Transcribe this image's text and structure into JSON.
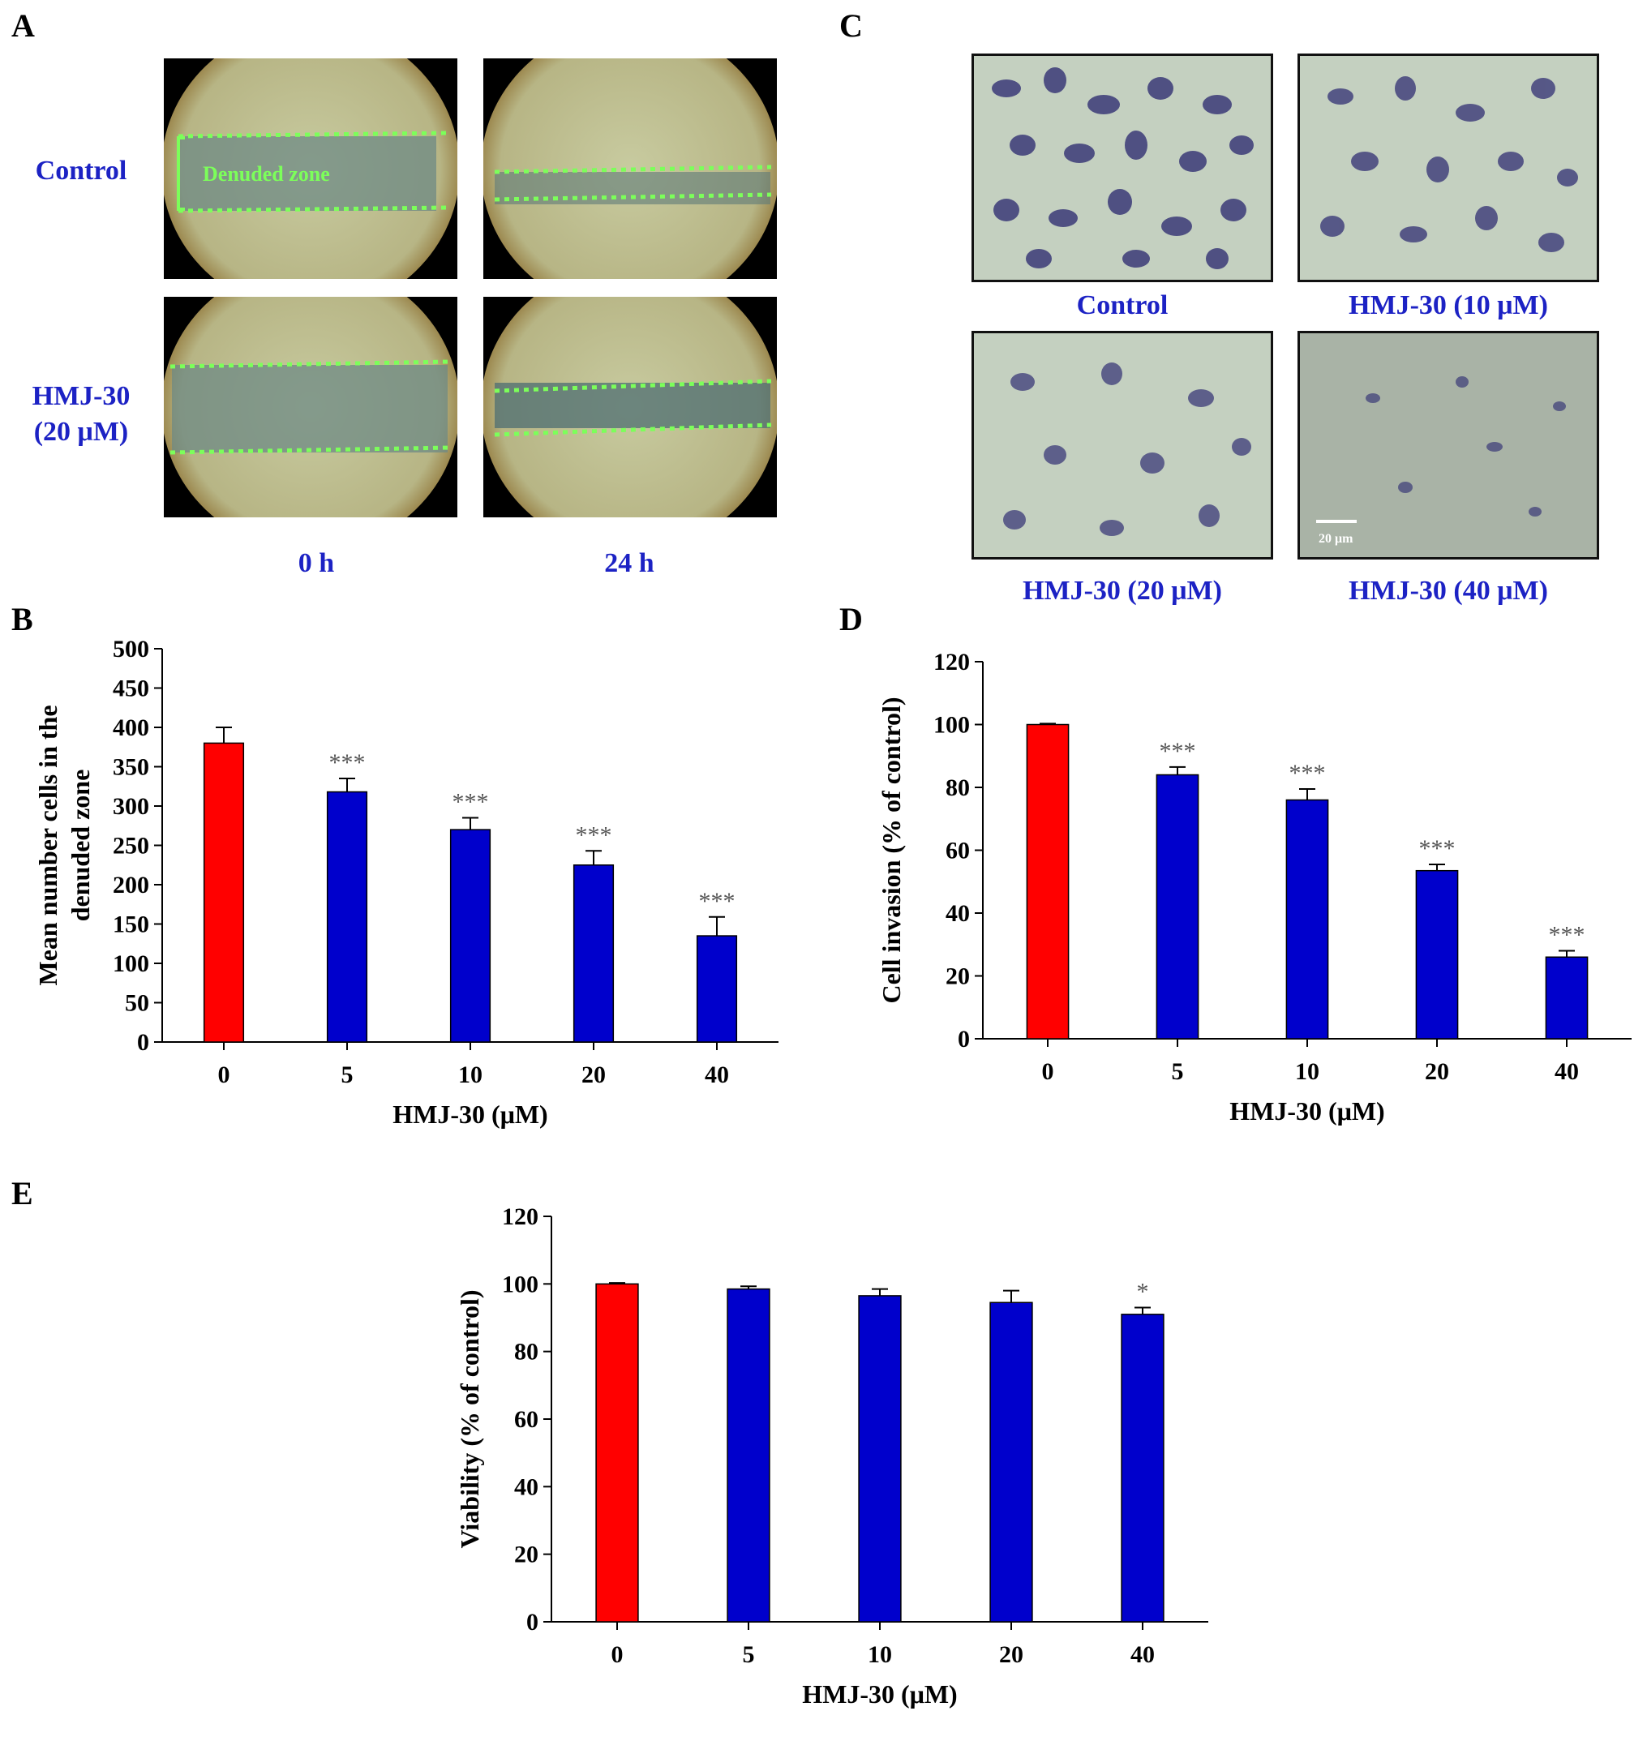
{
  "panels": {
    "A": {
      "letter": "A",
      "row_labels": [
        "Control",
        "HMJ-30",
        "(20 μM)"
      ],
      "col_labels": [
        "0 h",
        "24 h"
      ],
      "annotation": "Denuded zone"
    },
    "C": {
      "letter": "C",
      "image_labels": [
        "Control",
        "HMJ-30 (10 μM)",
        "HMJ-30 (20 μM)",
        "HMJ-30 (40 μM)"
      ],
      "scale_bar": "20 μm"
    },
    "B": {
      "letter": "B"
    },
    "D": {
      "letter": "D"
    },
    "E": {
      "letter": "E"
    }
  },
  "colors": {
    "control_bar": "#ff0000",
    "treated_bar": "#0000cc",
    "label_blue": "#1c22c4",
    "zone_line": "#7cff5a"
  },
  "chart_data": [
    {
      "id": "B",
      "type": "bar",
      "categories": [
        "0",
        "5",
        "10",
        "20",
        "40"
      ],
      "values": [
        380,
        318,
        270,
        225,
        135
      ],
      "errors": [
        20,
        17,
        15,
        18,
        24
      ],
      "significance": [
        "",
        "***",
        "***",
        "***",
        "***"
      ],
      "xlabel": "HMJ-30 (μM)",
      "ylabel": "Mean number cells in the denuded zone",
      "ylim": [
        0,
        500
      ],
      "yticks": [
        0,
        50,
        100,
        150,
        200,
        250,
        300,
        350,
        400,
        450,
        500
      ]
    },
    {
      "id": "D",
      "type": "bar",
      "categories": [
        "0",
        "5",
        "10",
        "20",
        "40"
      ],
      "values": [
        100,
        84,
        76,
        53.5,
        26
      ],
      "errors": [
        0.3,
        2.5,
        3.5,
        2,
        2
      ],
      "significance": [
        "",
        "***",
        "***",
        "***",
        "***"
      ],
      "xlabel": "HMJ-30 (μM)",
      "ylabel": "Cell invasion (% of control)",
      "ylim": [
        0,
        120
      ],
      "yticks": [
        0,
        20,
        40,
        60,
        80,
        100,
        120
      ]
    },
    {
      "id": "E",
      "type": "bar",
      "categories": [
        "0",
        "5",
        "10",
        "20",
        "40"
      ],
      "values": [
        100,
        98.5,
        96.5,
        94.5,
        91
      ],
      "errors": [
        0.3,
        0.8,
        2,
        3.5,
        2
      ],
      "significance": [
        "",
        "",
        "",
        "",
        "*"
      ],
      "xlabel": "HMJ-30 (μM)",
      "ylabel": "Viability (% of control)",
      "ylim": [
        0,
        120
      ],
      "yticks": [
        0,
        20,
        40,
        60,
        80,
        100,
        120
      ]
    }
  ]
}
